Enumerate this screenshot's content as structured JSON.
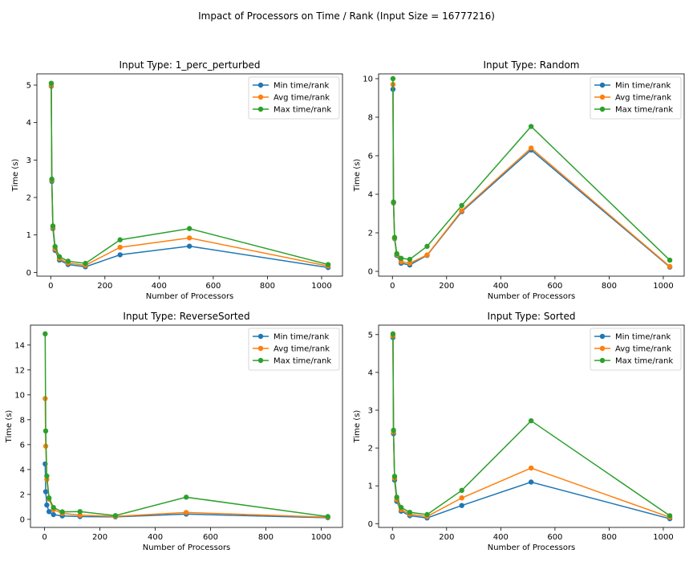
{
  "figure": {
    "suptitle": "Impact of Processors on Time / Rank (Input Size = 16777216)"
  },
  "chart_data": [
    {
      "type": "line",
      "title": "Input Type: 1_perc_perturbed",
      "xlabel": "Number of Processors",
      "ylabel": "Time (s)",
      "x": [
        2,
        4,
        8,
        16,
        32,
        64,
        128,
        256,
        512,
        1024
      ],
      "xlim": [
        -51.1,
        1077.1
      ],
      "ylim": [
        -0.1,
        5.3
      ],
      "xticks": [
        0,
        200,
        400,
        600,
        800,
        1000
      ],
      "yticks": [
        0,
        1,
        2,
        3,
        4,
        5
      ],
      "legend_position": "upper right",
      "series": [
        {
          "name": "Min time/rank",
          "color": "#1f77b4",
          "values": [
            4.97,
            2.43,
            1.17,
            0.59,
            0.33,
            0.21,
            0.15,
            0.47,
            0.7,
            0.13
          ]
        },
        {
          "name": "Avg time/rank",
          "color": "#ff7f0e",
          "values": [
            4.99,
            2.46,
            1.2,
            0.63,
            0.37,
            0.25,
            0.19,
            0.67,
            0.92,
            0.17
          ]
        },
        {
          "name": "Max time/rank",
          "color": "#2ca02c",
          "values": [
            5.05,
            2.49,
            1.24,
            0.69,
            0.42,
            0.3,
            0.24,
            0.87,
            1.17,
            0.21
          ]
        }
      ]
    },
    {
      "type": "line",
      "title": "Input Type: Random",
      "xlabel": "Number of Processors",
      "ylabel": "Time (s)",
      "x": [
        2,
        4,
        8,
        16,
        32,
        64,
        128,
        256,
        512,
        1024
      ],
      "xlim": [
        -51.1,
        1077.1
      ],
      "ylim": [
        -0.25,
        10.25
      ],
      "xticks": [
        0,
        200,
        400,
        600,
        800,
        1000
      ],
      "yticks": [
        0,
        2,
        4,
        6,
        8,
        10
      ],
      "legend_position": "upper right",
      "series": [
        {
          "name": "Min time/rank",
          "color": "#1f77b4",
          "values": [
            9.45,
            3.55,
            1.7,
            0.83,
            0.42,
            0.33,
            0.83,
            3.1,
            6.3,
            0.22
          ]
        },
        {
          "name": "Avg time/rank",
          "color": "#ff7f0e",
          "values": [
            9.7,
            3.57,
            1.72,
            0.88,
            0.5,
            0.42,
            0.85,
            3.15,
            6.4,
            0.25
          ]
        },
        {
          "name": "Max time/rank",
          "color": "#2ca02c",
          "values": [
            10.0,
            3.6,
            1.76,
            0.92,
            0.68,
            0.62,
            1.3,
            3.42,
            7.52,
            0.58
          ]
        }
      ]
    },
    {
      "type": "line",
      "title": "Input Type: ReverseSorted",
      "xlabel": "Number of Processors",
      "ylabel": "Time (s)",
      "x": [
        2,
        4,
        8,
        16,
        32,
        64,
        128,
        256,
        512,
        1024
      ],
      "xlim": [
        -51.1,
        1077.1
      ],
      "ylim": [
        -0.65,
        15.6
      ],
      "xticks": [
        0,
        200,
        400,
        600,
        800,
        1000
      ],
      "yticks": [
        0,
        2,
        4,
        6,
        8,
        10,
        12,
        14
      ],
      "legend_position": "upper right",
      "series": [
        {
          "name": "Min time/rank",
          "color": "#1f77b4",
          "values": [
            4.45,
            2.22,
            1.15,
            0.62,
            0.38,
            0.28,
            0.22,
            0.2,
            0.42,
            0.13
          ]
        },
        {
          "name": "Avg time/rank",
          "color": "#ff7f0e",
          "values": [
            9.7,
            5.88,
            3.2,
            1.62,
            0.78,
            0.48,
            0.33,
            0.24,
            0.55,
            0.17
          ]
        },
        {
          "name": "Max time/rank",
          "color": "#2ca02c",
          "values": [
            14.9,
            7.1,
            3.48,
            1.72,
            0.95,
            0.6,
            0.62,
            0.3,
            1.78,
            0.22
          ]
        }
      ]
    },
    {
      "type": "line",
      "title": "Input Type: Sorted",
      "xlabel": "Number of Processors",
      "ylabel": "Time (s)",
      "x": [
        2,
        4,
        8,
        16,
        32,
        64,
        128,
        256,
        512,
        1024
      ],
      "xlim": [
        -51.1,
        1077.1
      ],
      "ylim": [
        -0.1,
        5.25
      ],
      "xticks": [
        0,
        200,
        400,
        600,
        800,
        1000
      ],
      "yticks": [
        0,
        1,
        2,
        3,
        4,
        5
      ],
      "legend_position": "upper right",
      "series": [
        {
          "name": "Min time/rank",
          "color": "#1f77b4",
          "values": [
            4.92,
            2.38,
            1.15,
            0.59,
            0.33,
            0.21,
            0.15,
            0.48,
            1.1,
            0.13
          ]
        },
        {
          "name": "Avg time/rank",
          "color": "#ff7f0e",
          "values": [
            4.96,
            2.42,
            1.2,
            0.64,
            0.37,
            0.25,
            0.19,
            0.68,
            1.47,
            0.17
          ]
        },
        {
          "name": "Max time/rank",
          "color": "#2ca02c",
          "values": [
            5.02,
            2.47,
            1.25,
            0.7,
            0.43,
            0.3,
            0.24,
            0.88,
            2.72,
            0.21
          ]
        }
      ]
    }
  ]
}
